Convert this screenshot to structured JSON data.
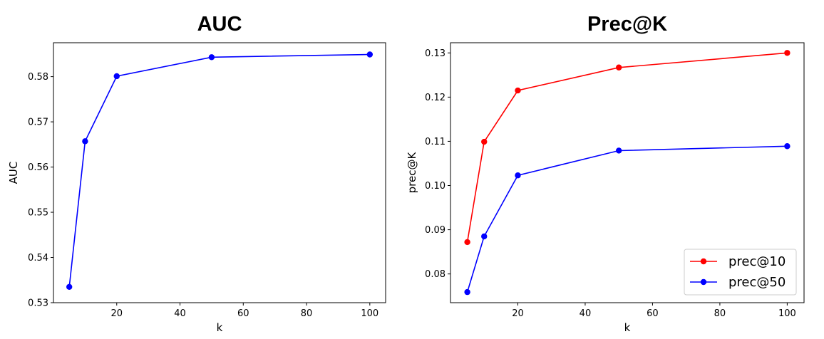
{
  "chart_data": [
    {
      "type": "line",
      "title": "AUC",
      "xlabel": "k",
      "ylabel": "AUC",
      "xlim": [
        0,
        105
      ],
      "ylim": [
        0.53,
        0.5875
      ],
      "xticks": [
        20,
        40,
        60,
        80,
        100
      ],
      "yticks": [
        0.53,
        0.54,
        0.55,
        0.56,
        0.57,
        0.58
      ],
      "x": [
        5,
        10,
        20,
        50,
        100
      ],
      "series": [
        {
          "name": "",
          "color": "#0000ff",
          "marker": "circle",
          "values": [
            0.5335,
            0.5657,
            0.5801,
            0.5843,
            0.5849
          ]
        }
      ],
      "legend": null,
      "grid": false
    },
    {
      "type": "line",
      "title": "Prec@K",
      "xlabel": "k",
      "ylabel": "prec@K",
      "xlim": [
        0,
        105
      ],
      "ylim": [
        0.0735,
        0.1323
      ],
      "xticks": [
        20,
        40,
        60,
        80,
        100
      ],
      "yticks": [
        0.08,
        0.09,
        0.1,
        0.11,
        0.12,
        0.13
      ],
      "x": [
        5,
        10,
        20,
        50,
        100
      ],
      "series": [
        {
          "name": "prec@10",
          "color": "#ff0000",
          "marker": "circle",
          "values": [
            0.0872,
            0.1099,
            0.1215,
            0.1267,
            0.13
          ]
        },
        {
          "name": "prec@50",
          "color": "#0000ff",
          "marker": "circle",
          "values": [
            0.0759,
            0.0885,
            0.1023,
            0.1079,
            0.1089
          ]
        }
      ],
      "legend": "lower-right",
      "grid": false
    }
  ]
}
